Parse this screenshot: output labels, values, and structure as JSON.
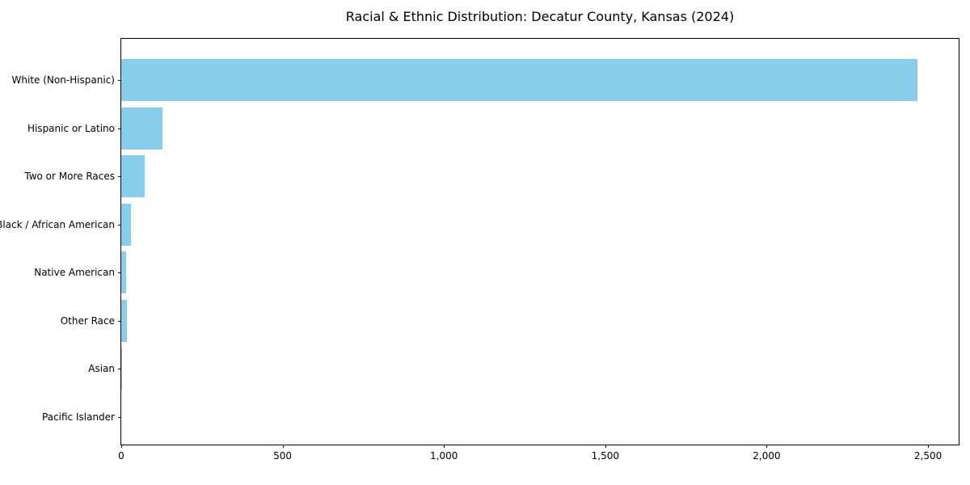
{
  "chart_data": {
    "type": "bar",
    "orientation": "horizontal",
    "title": "Racial & Ethnic Distribution: Decatur County, Kansas (2024)",
    "categories": [
      "White (Non-Hispanic)",
      "Hispanic or Latino",
      "Two or More Races",
      "Black / African American",
      "Native American",
      "Other Race",
      "Asian",
      "Pacific Islander"
    ],
    "values": [
      2468,
      128,
      72,
      30,
      15,
      18,
      2,
      0
    ],
    "xlabel": "",
    "ylabel": "",
    "xlim": [
      0,
      2595
    ],
    "x_ticks": [
      0,
      500,
      1000,
      1500,
      2000,
      2500
    ],
    "x_tick_labels": [
      "0",
      "500",
      "1,000",
      "1,500",
      "2,000",
      "2,500"
    ],
    "bar_color": "#87CEEB",
    "grid": false,
    "legend": "none"
  }
}
